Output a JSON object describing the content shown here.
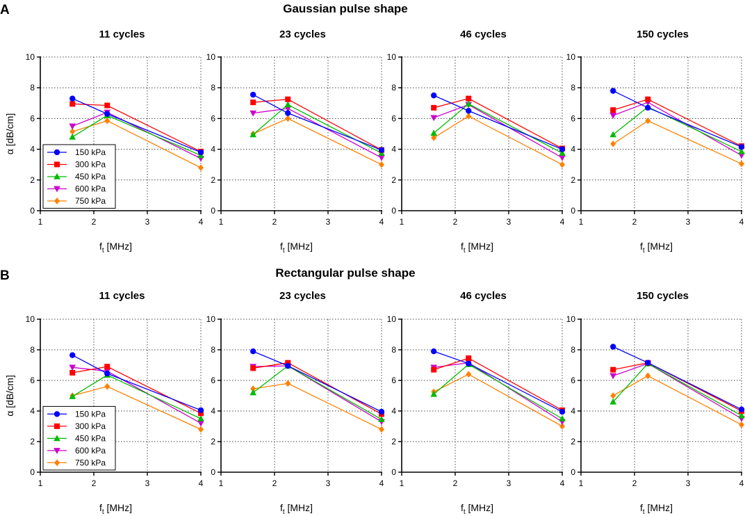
{
  "panels": [
    {
      "letter": "A",
      "title": "Gaussian pulse shape",
      "chart_data": [
        {
          "type": "line",
          "title": "11 cycles",
          "xlabel": "f_t [MHz]",
          "xlabel_base": "f",
          "xlabel_sub": "t",
          "xlabel_unit": " [MHz]",
          "ylabel": "α [dB/cm]",
          "xlim": [
            1,
            4
          ],
          "ylim": [
            0,
            10
          ],
          "xticks": [
            1,
            2,
            3,
            4
          ],
          "yticks": [
            0,
            2,
            4,
            6,
            8,
            10
          ],
          "grid": true,
          "legend": "bottom-left",
          "x": [
            1.6,
            2.25,
            4.0
          ],
          "series": [
            {
              "name": "150 kPa",
              "values": [
                7.3,
                6.3,
                3.8
              ]
            },
            {
              "name": "300 kPa",
              "values": [
                6.95,
                6.85,
                3.85
              ]
            },
            {
              "name": "450 kPa",
              "values": [
                4.8,
                6.2,
                3.6
              ]
            },
            {
              "name": "600 kPa",
              "values": [
                5.5,
                6.4,
                3.4
              ]
            },
            {
              "name": "750 kPa",
              "values": [
                5.15,
                5.85,
                2.8
              ]
            }
          ]
        },
        {
          "type": "line",
          "title": "23 cycles",
          "xlabel": "f_t [MHz]",
          "xlabel_base": "f",
          "xlabel_sub": "t",
          "xlabel_unit": " [MHz]",
          "ylabel": "α [dB/cm]",
          "xlim": [
            1,
            4
          ],
          "ylim": [
            0,
            10
          ],
          "xticks": [
            1,
            2,
            3,
            4
          ],
          "yticks": [
            0,
            2,
            4,
            6,
            8,
            10
          ],
          "grid": true,
          "x": [
            1.6,
            2.25,
            4.0
          ],
          "series": [
            {
              "name": "150 kPa",
              "values": [
                7.55,
                6.35,
                3.95
              ]
            },
            {
              "name": "300 kPa",
              "values": [
                7.05,
                7.25,
                3.95
              ]
            },
            {
              "name": "450 kPa",
              "values": [
                4.95,
                6.9,
                3.75
              ]
            },
            {
              "name": "600 kPa",
              "values": [
                6.35,
                6.65,
                3.45
              ]
            },
            {
              "name": "750 kPa",
              "values": [
                5.0,
                6.0,
                3.0
              ]
            }
          ]
        },
        {
          "type": "line",
          "title": "46 cycles",
          "xlabel": "f_t [MHz]",
          "xlabel_base": "f",
          "xlabel_sub": "t",
          "xlabel_unit": " [MHz]",
          "ylabel": "α [dB/cm]",
          "xlim": [
            1,
            4
          ],
          "ylim": [
            0,
            10
          ],
          "xticks": [
            1,
            2,
            3,
            4
          ],
          "yticks": [
            0,
            2,
            4,
            6,
            8,
            10
          ],
          "grid": true,
          "x": [
            1.6,
            2.25,
            4.0
          ],
          "series": [
            {
              "name": "150 kPa",
              "values": [
                7.5,
                6.5,
                4.0
              ]
            },
            {
              "name": "300 kPa",
              "values": [
                6.7,
                7.3,
                4.05
              ]
            },
            {
              "name": "450 kPa",
              "values": [
                5.05,
                6.95,
                3.75
              ]
            },
            {
              "name": "600 kPa",
              "values": [
                6.05,
                6.9,
                3.45
              ]
            },
            {
              "name": "750 kPa",
              "values": [
                4.75,
                6.15,
                3.0
              ]
            }
          ]
        },
        {
          "type": "line",
          "title": "150 cycles",
          "xlabel": "f_t [MHz]",
          "xlabel_base": "f",
          "xlabel_sub": "t",
          "xlabel_unit": " [MHz]",
          "ylabel": "α [dB/cm]",
          "xlim": [
            1,
            4
          ],
          "ylim": [
            0,
            10
          ],
          "xticks": [
            1,
            2,
            3,
            4
          ],
          "yticks": [
            0,
            2,
            4,
            6,
            8,
            10
          ],
          "grid": true,
          "x": [
            1.6,
            2.25,
            4.0
          ],
          "series": [
            {
              "name": "150 kPa",
              "values": [
                7.8,
                6.7,
                4.15
              ]
            },
            {
              "name": "300 kPa",
              "values": [
                6.55,
                7.25,
                4.2
              ]
            },
            {
              "name": "450 kPa",
              "values": [
                4.95,
                6.75,
                3.85
              ]
            },
            {
              "name": "600 kPa",
              "values": [
                6.2,
                7.05,
                3.6
              ]
            },
            {
              "name": "750 kPa",
              "values": [
                4.35,
                5.85,
                3.05
              ]
            }
          ]
        }
      ]
    },
    {
      "letter": "B",
      "title": "Rectangular pulse shape",
      "chart_data": [
        {
          "type": "line",
          "title": "11 cycles",
          "xlabel": "f_t [MHz]",
          "xlabel_base": "f",
          "xlabel_sub": "t",
          "xlabel_unit": " [MHz]",
          "ylabel": "α [dB/cm]",
          "xlim": [
            1,
            4
          ],
          "ylim": [
            0,
            10
          ],
          "xticks": [
            1,
            2,
            3,
            4
          ],
          "yticks": [
            0,
            2,
            4,
            6,
            8,
            10
          ],
          "grid": true,
          "legend": "bottom-left",
          "x": [
            1.6,
            2.25,
            4.0
          ],
          "series": [
            {
              "name": "150 kPa",
              "values": [
                7.65,
                6.45,
                4.05
              ]
            },
            {
              "name": "300 kPa",
              "values": [
                6.5,
                6.9,
                3.85
              ]
            },
            {
              "name": "450 kPa",
              "values": [
                4.95,
                6.35,
                3.5
              ]
            },
            {
              "name": "600 kPa",
              "values": [
                6.85,
                6.6,
                3.2
              ]
            },
            {
              "name": "750 kPa",
              "values": [
                5.0,
                5.6,
                2.8
              ]
            }
          ]
        },
        {
          "type": "line",
          "title": "23 cycles",
          "xlabel": "f_t [MHz]",
          "xlabel_base": "f",
          "xlabel_sub": "t",
          "xlabel_unit": " [MHz]",
          "ylabel": "α [dB/cm]",
          "xlim": [
            1,
            4
          ],
          "ylim": [
            0,
            10
          ],
          "xticks": [
            1,
            2,
            3,
            4
          ],
          "yticks": [
            0,
            2,
            4,
            6,
            8,
            10
          ],
          "grid": true,
          "x": [
            1.6,
            2.25,
            4.0
          ],
          "series": [
            {
              "name": "150 kPa",
              "values": [
                7.9,
                6.95,
                3.95
              ]
            },
            {
              "name": "300 kPa",
              "values": [
                6.8,
                7.15,
                3.8
              ]
            },
            {
              "name": "450 kPa",
              "values": [
                5.2,
                6.95,
                3.45
              ]
            },
            {
              "name": "600 kPa",
              "values": [
                6.9,
                6.95,
                3.3
              ]
            },
            {
              "name": "750 kPa",
              "values": [
                5.45,
                5.8,
                2.8
              ]
            }
          ]
        },
        {
          "type": "line",
          "title": "46 cycles",
          "xlabel": "f_t [MHz]",
          "xlabel_base": "f",
          "xlabel_sub": "t",
          "xlabel_unit": " [MHz]",
          "ylabel": "α [dB/cm]",
          "xlim": [
            1,
            4
          ],
          "ylim": [
            0,
            10
          ],
          "xticks": [
            1,
            2,
            3,
            4
          ],
          "yticks": [
            0,
            2,
            4,
            6,
            8,
            10
          ],
          "grid": true,
          "x": [
            1.6,
            2.25,
            4.0
          ],
          "series": [
            {
              "name": "150 kPa",
              "values": [
                7.9,
                7.1,
                3.95
              ]
            },
            {
              "name": "300 kPa",
              "values": [
                6.7,
                7.45,
                4.05
              ]
            },
            {
              "name": "450 kPa",
              "values": [
                5.1,
                7.05,
                3.5
              ]
            },
            {
              "name": "600 kPa",
              "values": [
                6.85,
                7.15,
                3.3
              ]
            },
            {
              "name": "750 kPa",
              "values": [
                5.25,
                6.4,
                3.0
              ]
            }
          ]
        },
        {
          "type": "line",
          "title": "150 cycles",
          "xlabel": "f_t [MHz]",
          "xlabel_base": "f",
          "xlabel_sub": "t",
          "xlabel_unit": " [MHz]",
          "ylabel": "α [dB/cm]",
          "xlim": [
            1,
            4
          ],
          "ylim": [
            0,
            10
          ],
          "xticks": [
            1,
            2,
            3,
            4
          ],
          "yticks": [
            0,
            2,
            4,
            6,
            8,
            10
          ],
          "grid": true,
          "x": [
            1.6,
            2.25,
            4.0
          ],
          "series": [
            {
              "name": "150 kPa",
              "values": [
                8.2,
                7.15,
                4.1
              ]
            },
            {
              "name": "300 kPa",
              "values": [
                6.7,
                7.15,
                4.0
              ]
            },
            {
              "name": "450 kPa",
              "values": [
                4.6,
                7.1,
                3.7
              ]
            },
            {
              "name": "600 kPa",
              "values": [
                6.3,
                7.1,
                3.5
              ]
            },
            {
              "name": "750 kPa",
              "values": [
                5.0,
                6.3,
                3.1
              ]
            }
          ]
        }
      ]
    }
  ],
  "series_style": [
    {
      "color": "#0000ff",
      "marker": "circle"
    },
    {
      "color": "#ff0000",
      "marker": "square"
    },
    {
      "color": "#00bb00",
      "marker": "triangle-up"
    },
    {
      "color": "#cc00cc",
      "marker": "triangle-down"
    },
    {
      "color": "#ff8000",
      "marker": "diamond"
    }
  ]
}
